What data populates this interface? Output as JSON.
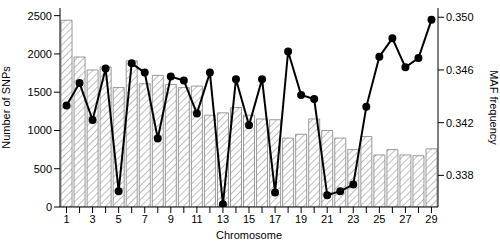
{
  "chart_data": {
    "type": "bar",
    "x_label": "Chromosome",
    "y_label": "Number of SNPs",
    "y2_label": "MAF frequency",
    "categories": [
      "1",
      null,
      "3",
      null,
      "5",
      null,
      "7",
      null,
      "9",
      null,
      "11",
      null,
      "13",
      null,
      "15",
      null,
      "17",
      null,
      "19",
      null,
      "21",
      null,
      "23",
      null,
      "25",
      null,
      "27",
      null,
      "29"
    ],
    "series": [
      {
        "type": "bar",
        "color": "#808080",
        "values": [
          2440,
          1960,
          1790,
          1830,
          1560,
          1910,
          1610,
          1720,
          1600,
          1560,
          1580,
          1200,
          1230,
          1300,
          1200,
          1150,
          1140,
          900,
          950,
          1150,
          1000,
          900,
          750,
          920,
          680,
          750,
          680,
          670,
          760
        ]
      },
      {
        "type": "line",
        "axis": "y2",
        "color": "#000000",
        "marker": "circle",
        "values": [
          0.3433,
          0.345,
          0.3422,
          0.3461,
          0.3368,
          0.3465,
          0.3458,
          0.3408,
          0.3455,
          0.3452,
          0.3427,
          0.3458,
          0.3358,
          0.3453,
          0.3418,
          0.3453,
          0.3367,
          0.3474,
          0.3441,
          0.3438,
          0.3365,
          0.3368,
          0.3373,
          0.3432,
          0.347,
          0.3484,
          0.3462,
          0.3469,
          0.3498
        ]
      }
    ],
    "ylim": [
      0,
      2600
    ],
    "yticks": [
      0,
      500,
      1000,
      1500,
      2000,
      2500
    ],
    "y2lim": [
      0.3356,
      0.3507
    ],
    "y2ticks": [
      0.338,
      0.342,
      0.346,
      {
        "value": 0.35,
        "label": "0.350"
      }
    ],
    "grid": false
  }
}
